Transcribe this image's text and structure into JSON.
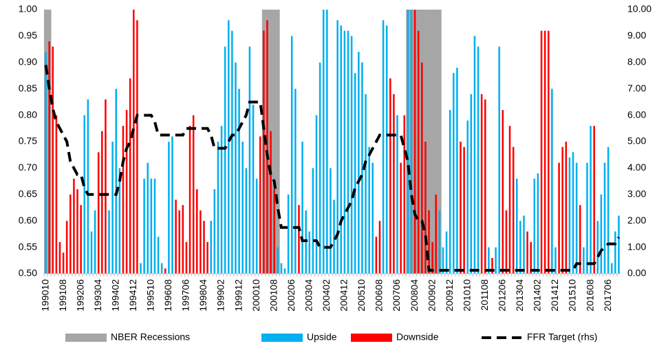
{
  "chart_data": {
    "type": "bar",
    "categories": [
      "199010",
      null,
      null,
      null,
      null,
      "199108",
      null,
      null,
      null,
      null,
      "199206",
      null,
      null,
      null,
      null,
      "199304",
      null,
      null,
      null,
      null,
      "199402",
      null,
      null,
      null,
      null,
      "199412",
      null,
      null,
      null,
      null,
      "199510",
      null,
      null,
      null,
      null,
      "199608",
      null,
      null,
      null,
      null,
      "199706",
      null,
      null,
      null,
      null,
      "199804",
      null,
      null,
      null,
      null,
      "199902",
      null,
      null,
      null,
      null,
      "199912",
      null,
      null,
      null,
      null,
      "200010",
      null,
      null,
      null,
      null,
      "200108",
      null,
      null,
      null,
      null,
      "200206",
      null,
      null,
      null,
      null,
      "200304",
      null,
      null,
      null,
      null,
      "200402",
      null,
      null,
      null,
      null,
      "200412",
      null,
      null,
      null,
      null,
      "200510",
      null,
      null,
      null,
      null,
      "200608",
      null,
      null,
      null,
      null,
      "200706",
      null,
      null,
      null,
      null,
      "200804",
      null,
      null,
      null,
      null,
      "200902",
      null,
      null,
      null,
      null,
      "200912",
      null,
      null,
      null,
      null,
      "201010",
      null,
      null,
      null,
      null,
      "201108",
      null,
      null,
      null,
      null,
      "201206",
      null,
      null,
      null,
      null,
      "201304",
      null,
      null,
      null,
      null,
      "201402",
      null,
      null,
      null,
      null,
      "201412",
      null,
      null,
      null,
      null,
      "201510",
      null,
      null,
      null,
      null,
      "201608",
      null,
      null,
      null,
      null,
      "201706",
      null,
      null,
      null
    ],
    "series": [
      {
        "name": "NBER Recessions",
        "type": "band",
        "color": "#a6a6a6",
        "values": [
          1,
          1,
          null,
          null,
          null,
          null,
          null,
          null,
          null,
          null,
          null,
          null,
          null,
          null,
          null,
          null,
          null,
          null,
          null,
          null,
          null,
          null,
          null,
          null,
          null,
          null,
          null,
          null,
          null,
          null,
          null,
          null,
          null,
          null,
          null,
          null,
          null,
          null,
          null,
          null,
          null,
          null,
          null,
          null,
          null,
          null,
          null,
          null,
          null,
          null,
          null,
          null,
          null,
          null,
          null,
          null,
          null,
          null,
          null,
          null,
          null,
          null,
          1,
          1,
          1,
          1,
          1,
          null,
          null,
          null,
          null,
          null,
          null,
          null,
          null,
          null,
          null,
          null,
          null,
          null,
          null,
          null,
          null,
          null,
          null,
          null,
          null,
          null,
          null,
          null,
          null,
          null,
          null,
          null,
          null,
          null,
          null,
          null,
          null,
          null,
          null,
          null,
          null,
          1,
          1,
          1,
          1,
          1,
          1,
          1,
          1,
          1,
          1,
          null,
          null,
          null,
          null,
          null,
          null,
          null,
          null,
          null,
          null,
          null,
          null,
          null,
          null,
          null,
          null,
          null,
          null,
          null,
          null,
          null,
          null,
          null,
          null,
          null,
          null,
          null,
          null,
          null,
          null,
          null,
          null,
          null,
          null,
          null,
          null,
          null,
          null,
          null,
          null,
          null,
          null,
          null,
          null,
          null,
          null,
          null,
          null,
          null,
          null,
          null
        ]
      },
      {
        "name": "Upside",
        "type": "bar",
        "color": "#00b0f0",
        "values": [
          0.92,
          null,
          null,
          null,
          null,
          null,
          null,
          null,
          null,
          null,
          null,
          0.8,
          0.83,
          0.58,
          0.62,
          null,
          null,
          null,
          0.62,
          0.75,
          0.85,
          0.7,
          null,
          null,
          null,
          null,
          null,
          0.52,
          0.68,
          0.71,
          0.68,
          0.68,
          0.57,
          0.52,
          null,
          0.75,
          0.76,
          null,
          null,
          null,
          null,
          null,
          null,
          null,
          null,
          null,
          null,
          0.6,
          0.66,
          0.75,
          0.78,
          0.93,
          0.98,
          0.96,
          0.9,
          0.85,
          0.75,
          0.7,
          0.93,
          0.82,
          0.68,
          null,
          null,
          null,
          null,
          null,
          0.55,
          0.52,
          0.51,
          0.65,
          0.95,
          0.85,
          null,
          0.75,
          0.62,
          0.58,
          0.7,
          0.8,
          0.9,
          1.0,
          1.0,
          0.7,
          0.64,
          0.98,
          0.97,
          0.96,
          0.96,
          0.95,
          0.88,
          0.92,
          0.9,
          0.84,
          0.74,
          0.71,
          null,
          null,
          0.98,
          0.97,
          null,
          null,
          0.8,
          null,
          null,
          1.0,
          1.0,
          null,
          null,
          null,
          null,
          null,
          null,
          null,
          0.62,
          0.55,
          0.58,
          0.81,
          0.88,
          0.89,
          null,
          null,
          0.79,
          0.84,
          0.95,
          0.93,
          null,
          null,
          0.55,
          null,
          0.55,
          0.93,
          null,
          null,
          null,
          null,
          0.68,
          0.6,
          0.61,
          null,
          null,
          0.68,
          0.69,
          null,
          null,
          null,
          0.85,
          0.55,
          null,
          null,
          null,
          0.72,
          0.73,
          0.71,
          null,
          0.55,
          0.71,
          0.78,
          null,
          0.6,
          0.65,
          0.71,
          0.74,
          0.52,
          0.58,
          0.61
        ]
      },
      {
        "name": "Downside",
        "type": "bar",
        "color": "#ff0000",
        "values": [
          null,
          0.94,
          0.93,
          0.8,
          0.56,
          0.54,
          0.6,
          0.65,
          0.68,
          0.66,
          0.63,
          null,
          null,
          null,
          null,
          0.73,
          0.77,
          0.83,
          null,
          null,
          null,
          null,
          0.78,
          0.81,
          0.87,
          1.0,
          0.98,
          null,
          null,
          null,
          null,
          null,
          null,
          null,
          0.51,
          null,
          null,
          0.64,
          0.62,
          0.63,
          0.56,
          0.78,
          0.8,
          0.66,
          0.62,
          0.6,
          0.56,
          null,
          null,
          null,
          null,
          null,
          null,
          null,
          null,
          null,
          null,
          null,
          null,
          null,
          null,
          0.76,
          0.96,
          0.98,
          0.77,
          0.66,
          null,
          null,
          null,
          null,
          null,
          null,
          0.63,
          null,
          null,
          null,
          null,
          null,
          null,
          null,
          null,
          null,
          null,
          null,
          null,
          null,
          null,
          null,
          null,
          null,
          null,
          null,
          null,
          null,
          0.57,
          0.6,
          null,
          null,
          0.87,
          0.84,
          null,
          0.71,
          0.8,
          null,
          null,
          1.0,
          0.96,
          0.9,
          0.75,
          0.62,
          0.56,
          0.65,
          null,
          null,
          null,
          null,
          null,
          null,
          0.75,
          0.74,
          null,
          null,
          null,
          null,
          0.84,
          0.83,
          null,
          0.53,
          null,
          null,
          0.81,
          0.62,
          0.78,
          0.74,
          null,
          null,
          null,
          0.58,
          0.56,
          null,
          null,
          0.96,
          0.96,
          0.96,
          null,
          null,
          0.71,
          0.74,
          0.75,
          null,
          null,
          null,
          0.63,
          null,
          null,
          null,
          0.78,
          null,
          null,
          null,
          null,
          null,
          null,
          null
        ]
      },
      {
        "name": "FFR Target (rhs)",
        "type": "line",
        "axis": "y2",
        "color": "#000000",
        "dashed": true,
        "values": [
          7.9,
          7.0,
          6.25,
          5.75,
          5.5,
          5.25,
          5.0,
          4.25,
          4.0,
          3.75,
          3.75,
          3.25,
          3.0,
          3.0,
          3.0,
          3.0,
          3.0,
          3.0,
          3.0,
          3.0,
          3.0,
          3.5,
          4.25,
          4.75,
          5.0,
          5.5,
          6.0,
          6.0,
          6.0,
          6.0,
          6.0,
          5.75,
          5.25,
          5.25,
          5.25,
          5.25,
          5.25,
          5.25,
          5.25,
          5.25,
          5.5,
          5.5,
          5.5,
          5.5,
          5.5,
          5.5,
          5.5,
          5.25,
          4.75,
          4.75,
          4.75,
          4.75,
          5.0,
          5.25,
          5.25,
          5.5,
          5.75,
          6.0,
          6.5,
          6.5,
          6.5,
          6.5,
          5.5,
          4.5,
          3.75,
          3.5,
          2.5,
          1.75,
          1.75,
          1.75,
          1.75,
          1.75,
          1.75,
          1.25,
          1.25,
          1.25,
          1.25,
          1.25,
          1.0,
          1.0,
          1.0,
          1.0,
          1.25,
          1.5,
          2.0,
          2.25,
          2.5,
          2.75,
          3.25,
          3.5,
          3.75,
          4.25,
          4.5,
          4.75,
          5.0,
          5.25,
          5.25,
          5.25,
          5.25,
          5.25,
          5.25,
          5.25,
          4.75,
          4.25,
          3.0,
          2.25,
          2.0,
          2.0,
          1.5,
          0.13,
          0.13,
          0.13,
          0.13,
          0.13,
          0.13,
          0.13,
          0.13,
          0.13,
          0.13,
          0.13,
          0.13,
          0.13,
          0.13,
          0.13,
          0.13,
          0.13,
          0.13,
          0.13,
          0.13,
          0.13,
          0.13,
          0.13,
          0.13,
          0.13,
          0.13,
          0.13,
          0.13,
          0.13,
          0.13,
          0.13,
          0.13,
          0.13,
          0.13,
          0.13,
          0.13,
          0.13,
          0.13,
          0.13,
          0.13,
          0.13,
          0.13,
          0.38,
          0.38,
          0.38,
          0.38,
          0.38,
          0.38,
          0.63,
          0.88,
          1.0,
          1.13,
          1.13,
          1.13,
          1.38
        ]
      }
    ],
    "ylim": [
      0.5,
      1.0
    ],
    "yticks": [
      {
        "value": 0.5,
        "label": "0.50"
      },
      0.55,
      {
        "value": 0.6,
        "label": "0.60"
      },
      0.65,
      {
        "value": 0.7,
        "label": "0.70"
      },
      0.75,
      {
        "value": 0.8,
        "label": "0.80"
      },
      0.85,
      {
        "value": 0.9,
        "label": "0.90"
      },
      0.95,
      {
        "value": 1.0,
        "label": "1.00"
      }
    ],
    "y2lim": [
      0,
      10
    ],
    "y2ticks": [
      {
        "value": 0,
        "label": "0.00"
      },
      {
        "value": 1,
        "label": "1.00"
      },
      {
        "value": 2,
        "label": "2.00"
      },
      {
        "value": 3,
        "label": "3.00"
      },
      {
        "value": 4,
        "label": "4.00"
      },
      {
        "value": 5,
        "label": "5.00"
      },
      {
        "value": 6,
        "label": "6.00"
      },
      {
        "value": 7,
        "label": "7.00"
      },
      {
        "value": 8,
        "label": "8.00"
      },
      {
        "value": 9,
        "label": "9.00"
      },
      {
        "value": 10,
        "label": "10.00"
      }
    ],
    "legend": "bottom"
  }
}
